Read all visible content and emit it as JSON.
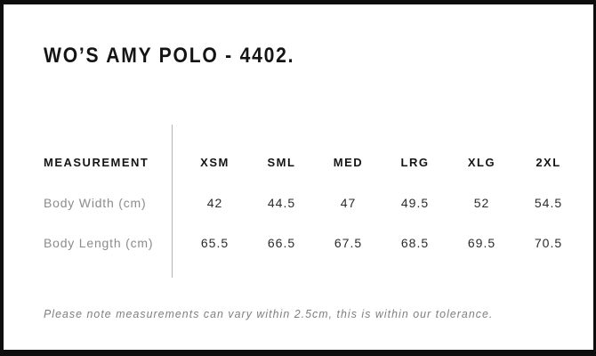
{
  "page": {
    "title": "WO’S AMY POLO - 4402.",
    "note": "Please note measurements can vary within 2.5cm, this is within our tolerance."
  },
  "size_chart": {
    "header_label": "MEASUREMENT",
    "sizes": [
      "XSM",
      "SML",
      "MED",
      "LRG",
      "XLG",
      "2XL"
    ],
    "rows": [
      {
        "label": "Body Width (cm)",
        "values": [
          "42",
          "44.5",
          "47",
          "49.5",
          "52",
          "54.5"
        ]
      },
      {
        "label": "Body Length (cm)",
        "values": [
          "65.5",
          "66.5",
          "67.5",
          "68.5",
          "69.5",
          "70.5"
        ]
      }
    ]
  },
  "chart_data": {
    "type": "table",
    "title": "WO’S AMY POLO - 4402.",
    "columns": [
      "MEASUREMENT",
      "XSM",
      "SML",
      "MED",
      "LRG",
      "XLG",
      "2XL"
    ],
    "categories": [
      "XSM",
      "SML",
      "MED",
      "LRG",
      "XLG",
      "2XL"
    ],
    "series": [
      {
        "name": "Body Width (cm)",
        "values": [
          42,
          44.5,
          47,
          49.5,
          52,
          54.5
        ]
      },
      {
        "name": "Body Length (cm)",
        "values": [
          65.5,
          66.5,
          67.5,
          68.5,
          69.5,
          70.5
        ]
      }
    ],
    "footnote": "Please note measurements can vary within 2.5cm, this is within our tolerance."
  },
  "colors": {
    "frame": "#0e0e0e",
    "header_text": "#151515",
    "value_text": "#2b2b2b",
    "label_text": "#8c8c8c",
    "divider": "#b5b5b5",
    "note_text": "#7f7f7f",
    "background": "#ffffff"
  }
}
